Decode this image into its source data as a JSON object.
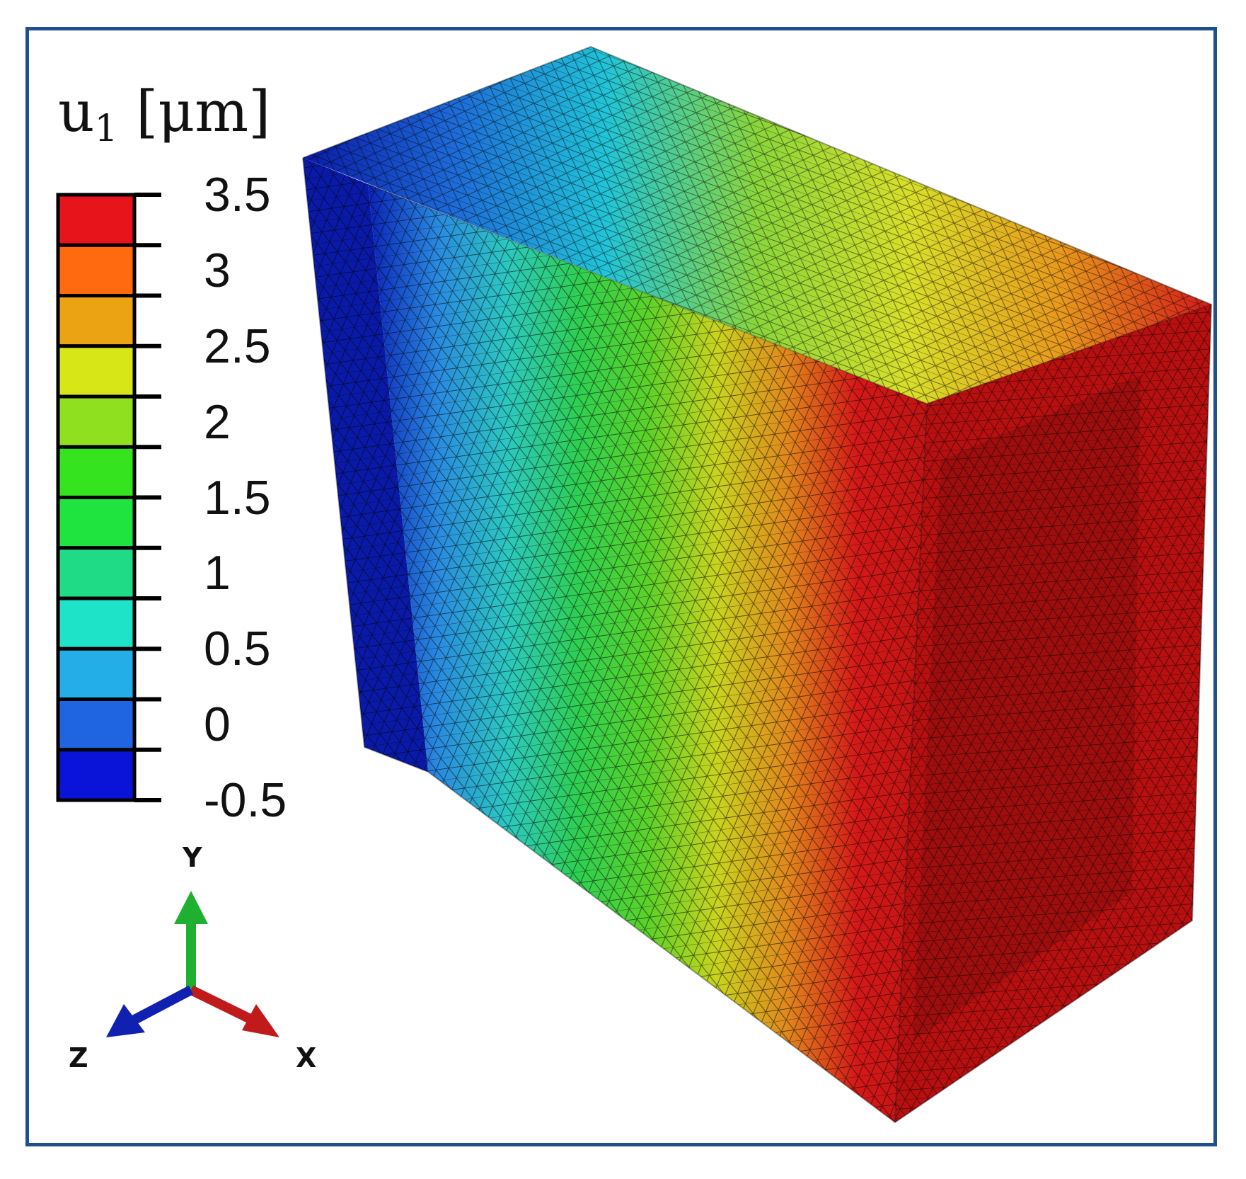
{
  "legend": {
    "variable": "u",
    "subscript": "1",
    "unit": "[μm]",
    "ticks": [
      "3.5",
      "3",
      "2.5",
      "2",
      "1.5",
      "1",
      "0.5",
      "0",
      "-0.5"
    ],
    "band_colors": [
      "#e8141c",
      "#ff6a10",
      "#eba313",
      "#d6e617",
      "#8fe01e",
      "#35e31e",
      "#1fe33f",
      "#1fdb85",
      "#1ee3c8",
      "#23aee8",
      "#1f64e0",
      "#0a14d8"
    ]
  },
  "triad": {
    "x_label": "X",
    "y_label": "Y",
    "z_label": "Z",
    "x_color": "#c01a1a",
    "y_color": "#20b030",
    "z_color": "#1020b0"
  },
  "model": {
    "left_face_color": "#0a1aa8",
    "top_face_gradient": [
      "#0a1aa8",
      "#1e6bd8",
      "#21c4d8",
      "#8ad63c",
      "#d8df2a",
      "#e89a1c",
      "#d31a1a"
    ],
    "front_face_gradient": [
      "#0a22b8",
      "#2a8ae0",
      "#2cc8c0",
      "#2fcf52",
      "#5bd22a",
      "#c8d41e",
      "#e0881c",
      "#d41818",
      "#c01414"
    ],
    "right_face_color": "#b81010",
    "mesh_color": "#0a0a0a"
  }
}
